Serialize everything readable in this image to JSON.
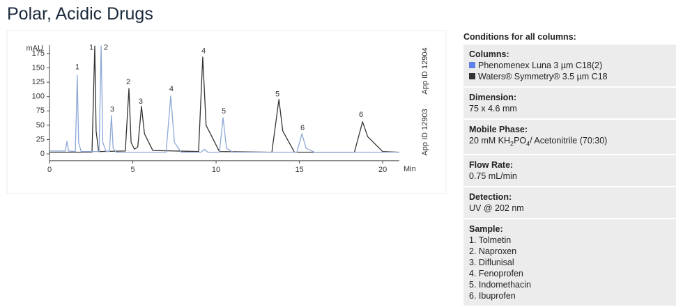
{
  "page_title": "Polar, Acidic Drugs",
  "chart_data": {
    "type": "line",
    "y_label": "mAU",
    "x_label": "Min",
    "xlim": [
      0,
      21
    ],
    "xticks": [
      0,
      5,
      10,
      15,
      20
    ],
    "ylim": [
      -12,
      190
    ],
    "yticks": [
      0,
      25,
      50,
      75,
      100,
      125,
      150,
      175
    ],
    "side_labels": [
      "App ID 12904",
      "App ID 12903"
    ],
    "series": [
      {
        "name": "Phenomenex Luna 3 µm C18(2)",
        "color": "#8ea8d6",
        "legend_color": "#5b82e6",
        "x": [
          0,
          0.95,
          1.05,
          1.15,
          1.55,
          1.67,
          1.75,
          1.9,
          2.98,
          3.1,
          3.2,
          3.4,
          3.6,
          3.72,
          3.82,
          4.0,
          7.0,
          7.28,
          7.5,
          7.9,
          9.1,
          9.3,
          9.5,
          10.2,
          10.42,
          10.62,
          11.0,
          14.85,
          15.15,
          15.4,
          15.9,
          21
        ],
        "values": [
          5,
          5,
          22,
          5,
          4,
          137,
          20,
          4,
          4,
          188,
          20,
          4,
          4,
          67,
          10,
          3,
          3,
          101,
          20,
          3,
          3,
          8,
          3,
          3,
          63,
          10,
          3,
          3,
          35,
          10,
          3,
          3
        ]
      },
      {
        "name": "Waters® Symmetry® 3.5 µm C18",
        "color": "#333333",
        "legend_color": "#333333",
        "x": [
          0,
          2.55,
          2.72,
          2.8,
          2.95,
          4.55,
          4.77,
          4.9,
          5.1,
          5.3,
          5.52,
          5.7,
          6.2,
          8.95,
          9.2,
          9.4,
          10.2,
          13.35,
          13.77,
          14.0,
          14.7,
          18.3,
          18.79,
          19.1,
          20.0,
          21
        ],
        "values": [
          3,
          3,
          188,
          40,
          4,
          5,
          114,
          20,
          8,
          12,
          83,
          35,
          6,
          4,
          169,
          50,
          4,
          3,
          95,
          40,
          3,
          3,
          56,
          30,
          4,
          3
        ]
      }
    ],
    "annotations": [
      {
        "text": "1",
        "x": 2.51,
        "y": 185
      },
      {
        "text": "2",
        "x": 4.73,
        "y": 125
      },
      {
        "text": "3",
        "x": 5.48,
        "y": 91
      },
      {
        "text": "4",
        "x": 9.25,
        "y": 179
      },
      {
        "text": "5",
        "x": 13.68,
        "y": 104
      },
      {
        "text": "6",
        "x": 18.7,
        "y": 68
      },
      {
        "text": "1",
        "x": 1.67,
        "y": 151
      },
      {
        "text": "2",
        "x": 3.39,
        "y": 185
      },
      {
        "text": "3",
        "x": 3.77,
        "y": 77
      },
      {
        "text": "4",
        "x": 7.32,
        "y": 113
      },
      {
        "text": "5",
        "x": 10.46,
        "y": 74
      },
      {
        "text": "6",
        "x": 15.19,
        "y": 45
      }
    ]
  },
  "panel": {
    "heading": "Conditions for all columns:",
    "columns_title": "Columns:",
    "dimension": {
      "title": "Dimension:",
      "text": "75 x 4.6 mm"
    },
    "mobile_phase": {
      "title": "Mobile Phase:",
      "parts": [
        {
          "text": "20 mM KH"
        },
        {
          "text": "2",
          "sub": true
        },
        {
          "text": "PO"
        },
        {
          "text": "4",
          "sub": true
        },
        {
          "text": "/ Acetonitrile (70:30)"
        }
      ]
    },
    "flow_rate": {
      "title": "Flow Rate:",
      "text": "0.75 mL/min"
    },
    "detection": {
      "title": "Detection:",
      "text": "UV @ 202 nm"
    },
    "sample": {
      "title": "Sample:",
      "items": [
        "1. Tolmetin",
        "2. Naproxen",
        "3. Diflunisal",
        "4. Fenoprofen",
        "5. Indomethacin",
        "6. Ibuprofen"
      ]
    }
  }
}
